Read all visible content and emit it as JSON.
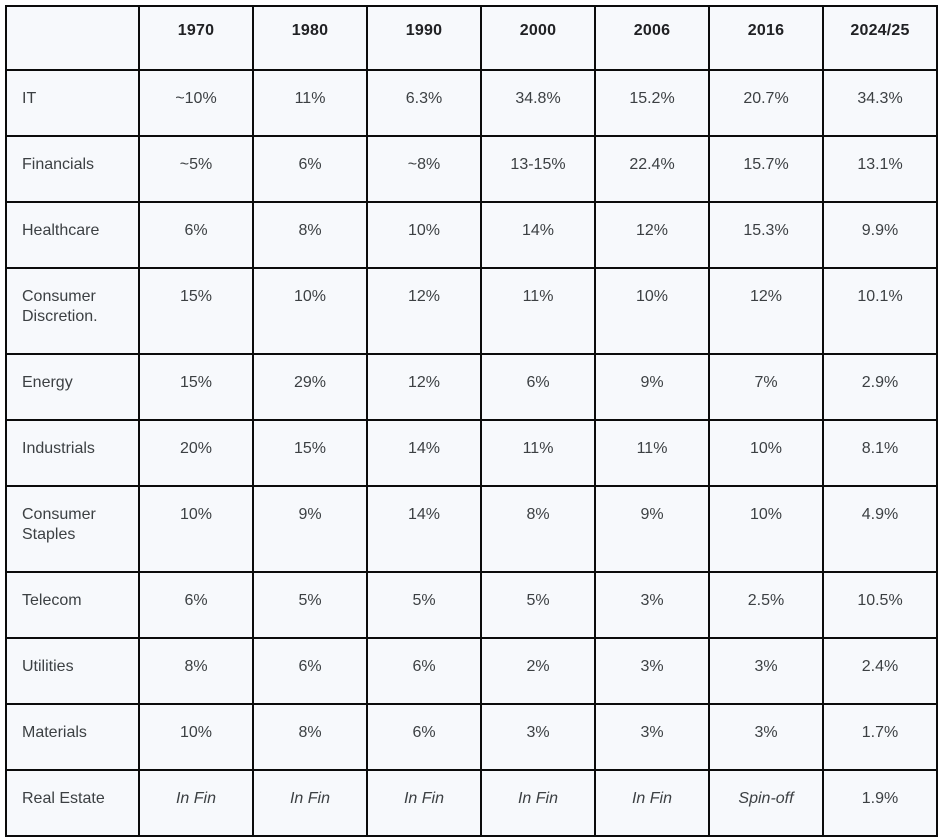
{
  "colors": {
    "cell_background": "#f7f9fc",
    "grid_border": "#0b0b0b",
    "header_text": "#202124",
    "body_text": "#3c4043",
    "page_background": "#ffffff"
  },
  "chart_data": {
    "type": "table",
    "title": "",
    "columns": [
      "",
      "1970",
      "1980",
      "1990",
      "2000",
      "2006",
      "2016",
      "2024/25"
    ],
    "rows": [
      {
        "label": "IT",
        "values": [
          "~10%",
          "11%",
          "6.3%",
          "34.8%",
          "15.2%",
          "20.7%",
          "34.3%"
        ],
        "italics": []
      },
      {
        "label": "Financials",
        "values": [
          "~5%",
          "6%",
          "~8%",
          "13-15%",
          "22.4%",
          "15.7%",
          "13.1%"
        ],
        "italics": []
      },
      {
        "label": "Healthcare",
        "values": [
          "6%",
          "8%",
          "10%",
          "14%",
          "12%",
          "15.3%",
          "9.9%"
        ],
        "italics": []
      },
      {
        "label": "Consumer Discretion.",
        "values": [
          "15%",
          "10%",
          "12%",
          "11%",
          "10%",
          "12%",
          "10.1%"
        ],
        "italics": []
      },
      {
        "label": "Energy",
        "values": [
          "15%",
          "29%",
          "12%",
          "6%",
          "9%",
          "7%",
          "2.9%"
        ],
        "italics": []
      },
      {
        "label": "Industrials",
        "values": [
          "20%",
          "15%",
          "14%",
          "11%",
          "11%",
          "10%",
          "8.1%"
        ],
        "italics": []
      },
      {
        "label": "Consumer Staples",
        "values": [
          "10%",
          "9%",
          "14%",
          "8%",
          "9%",
          "10%",
          "4.9%"
        ],
        "italics": []
      },
      {
        "label": "Telecom",
        "values": [
          "6%",
          "5%",
          "5%",
          "5%",
          "3%",
          "2.5%",
          "10.5%"
        ],
        "italics": []
      },
      {
        "label": "Utilities",
        "values": [
          "8%",
          "6%",
          "6%",
          "2%",
          "3%",
          "3%",
          "2.4%"
        ],
        "italics": []
      },
      {
        "label": "Materials",
        "values": [
          "10%",
          "8%",
          "6%",
          "3%",
          "3%",
          "3%",
          "1.7%"
        ],
        "italics": []
      },
      {
        "label": "Real Estate",
        "values": [
          "In Fin",
          "In Fin",
          "In Fin",
          "In Fin",
          "In Fin",
          "Spin-off",
          "1.9%"
        ],
        "italics": [
          0,
          1,
          2,
          3,
          4,
          5
        ]
      }
    ]
  }
}
